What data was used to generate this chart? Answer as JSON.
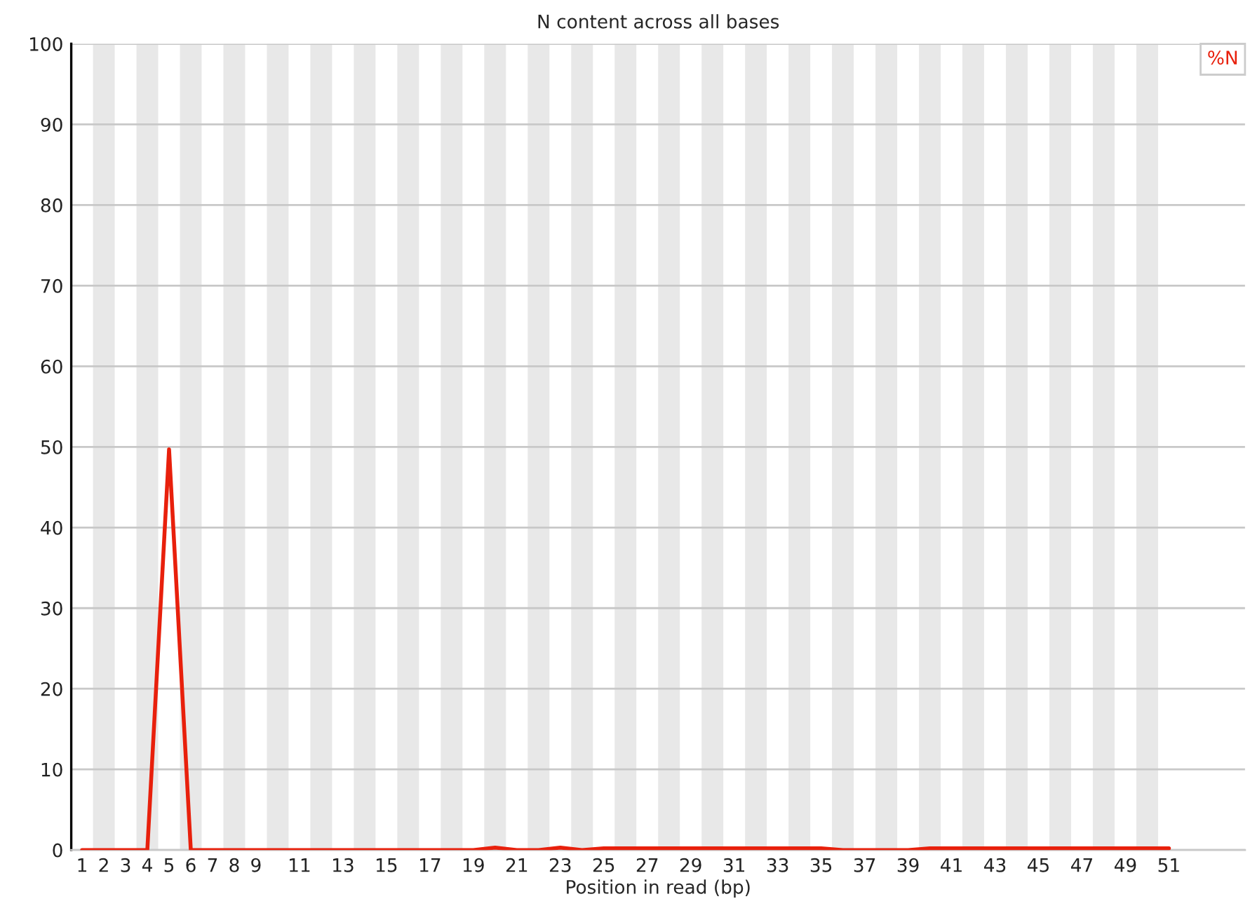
{
  "chart_data": {
    "type": "line",
    "title": "N content across all bases",
    "xlabel": "Position in read (bp)",
    "x": [
      1,
      2,
      3,
      4,
      5,
      6,
      7,
      8,
      9,
      10,
      11,
      12,
      13,
      14,
      15,
      16,
      17,
      18,
      19,
      20,
      21,
      22,
      23,
      24,
      25,
      26,
      27,
      28,
      29,
      30,
      31,
      32,
      33,
      34,
      35,
      36,
      37,
      38,
      39,
      40,
      41,
      42,
      43,
      44,
      45,
      46,
      47,
      48,
      49,
      50,
      51
    ],
    "series": [
      {
        "name": "%N",
        "color": "#e8200c",
        "values": [
          0,
          0,
          0,
          0,
          49.7,
          0,
          0,
          0,
          0,
          0,
          0,
          0,
          0,
          0,
          0,
          0,
          0,
          0,
          0,
          0.3,
          0,
          0,
          0.3,
          0,
          0.2,
          0.2,
          0.2,
          0.2,
          0.2,
          0.2,
          0.2,
          0.2,
          0.2,
          0.2,
          0.2,
          0,
          0,
          0,
          0,
          0.2,
          0.2,
          0.2,
          0.2,
          0.2,
          0.2,
          0.2,
          0.2,
          0.2,
          0.2,
          0.2,
          0.2
        ]
      }
    ],
    "xlim": [
      0.5,
      54.5
    ],
    "xticks": [
      1,
      2,
      3,
      4,
      5,
      6,
      7,
      8,
      9,
      11,
      13,
      15,
      17,
      19,
      21,
      23,
      25,
      27,
      29,
      31,
      33,
      35,
      37,
      39,
      41,
      43,
      45,
      47,
      49,
      51
    ],
    "ylim": [
      0,
      100
    ],
    "yticks": [
      0,
      10,
      20,
      30,
      40,
      50,
      60,
      70,
      80,
      90,
      100
    ],
    "grid": "y",
    "legend": "top right",
    "marker": "none",
    "line_style": "solid",
    "bands": [
      {
        "axis": "x",
        "from": 1.5,
        "to": 2.5,
        "color": "#e8e8e8"
      },
      {
        "axis": "x",
        "from": 3.5,
        "to": 4.5,
        "color": "#e8e8e8"
      },
      {
        "axis": "x",
        "from": 5.5,
        "to": 6.5,
        "color": "#e8e8e8"
      },
      {
        "axis": "x",
        "from": 7.5,
        "to": 8.5,
        "color": "#e8e8e8"
      },
      {
        "axis": "x",
        "from": 9.5,
        "to": 10.5,
        "color": "#e8e8e8"
      },
      {
        "axis": "x",
        "from": 11.5,
        "to": 12.5,
        "color": "#e8e8e8"
      },
      {
        "axis": "x",
        "from": 13.5,
        "to": 14.5,
        "color": "#e8e8e8"
      },
      {
        "axis": "x",
        "from": 15.5,
        "to": 16.5,
        "color": "#e8e8e8"
      },
      {
        "axis": "x",
        "from": 17.5,
        "to": 18.5,
        "color": "#e8e8e8"
      },
      {
        "axis": "x",
        "from": 19.5,
        "to": 20.5,
        "color": "#e8e8e8"
      },
      {
        "axis": "x",
        "from": 21.5,
        "to": 22.5,
        "color": "#e8e8e8"
      },
      {
        "axis": "x",
        "from": 23.5,
        "to": 24.5,
        "color": "#e8e8e8"
      },
      {
        "axis": "x",
        "from": 25.5,
        "to": 26.5,
        "color": "#e8e8e8"
      },
      {
        "axis": "x",
        "from": 27.5,
        "to": 28.5,
        "color": "#e8e8e8"
      },
      {
        "axis": "x",
        "from": 29.5,
        "to": 30.5,
        "color": "#e8e8e8"
      },
      {
        "axis": "x",
        "from": 31.5,
        "to": 32.5,
        "color": "#e8e8e8"
      },
      {
        "axis": "x",
        "from": 33.5,
        "to": 34.5,
        "color": "#e8e8e8"
      },
      {
        "axis": "x",
        "from": 35.5,
        "to": 36.5,
        "color": "#e8e8e8"
      },
      {
        "axis": "x",
        "from": 37.5,
        "to": 38.5,
        "color": "#e8e8e8"
      },
      {
        "axis": "x",
        "from": 39.5,
        "to": 40.5,
        "color": "#e8e8e8"
      },
      {
        "axis": "x",
        "from": 41.5,
        "to": 42.5,
        "color": "#e8e8e8"
      },
      {
        "axis": "x",
        "from": 43.5,
        "to": 44.5,
        "color": "#e8e8e8"
      },
      {
        "axis": "x",
        "from": 45.5,
        "to": 46.5,
        "color": "#e8e8e8"
      },
      {
        "axis": "x",
        "from": 47.5,
        "to": 48.5,
        "color": "#e8e8e8"
      },
      {
        "axis": "x",
        "from": 49.5,
        "to": 50.5,
        "color": "#e8e8e8"
      }
    ]
  }
}
